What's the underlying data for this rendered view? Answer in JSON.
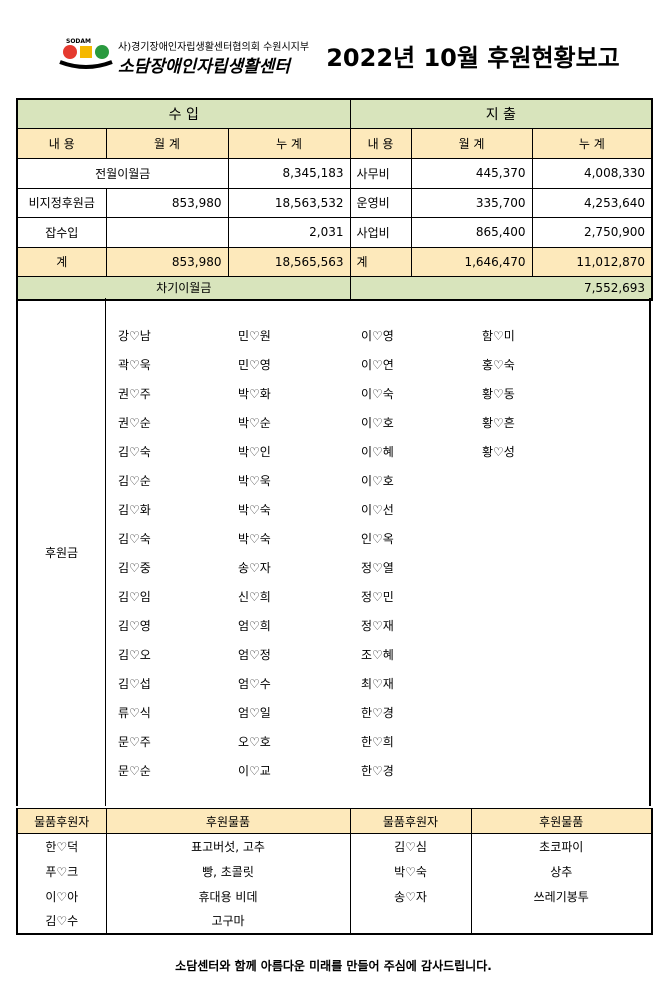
{
  "header": {
    "logo_mark": "SODAM",
    "org": "사)경기장애인자립생활센터협의회 수원시지부",
    "logo_text": "소담장애인자립생활센터",
    "title": "2022년 10월 후원현황보고"
  },
  "summary": {
    "income_label": "수 입",
    "expense_label": "지 출",
    "columns": [
      "내 용",
      "월 계",
      "누 계",
      "내 용",
      "월 계",
      "누 계"
    ],
    "rows": [
      {
        "income_item": "전월이월금",
        "income_total": "8,345,183",
        "expense_item": "사무비",
        "expense_month": "445,370",
        "expense_total": "4,008,330"
      },
      {
        "income_item": "비지정후원금",
        "income_month": "853,980",
        "income_total": "18,563,532",
        "expense_item": "운영비",
        "expense_month": "335,700",
        "expense_total": "4,253,640"
      },
      {
        "income_item": "잡수입",
        "income_total": "2,031",
        "expense_item": "사업비",
        "expense_month": "865,400",
        "expense_total": "2,750,900"
      },
      {
        "income_item": "계",
        "income_month": "853,980",
        "income_total": "18,565,563",
        "expense_item": "계",
        "expense_month": "1,646,470",
        "expense_total": "11,012,870"
      }
    ],
    "carryover": {
      "label": "차기이월금",
      "value": "7,552,693"
    }
  },
  "donors": {
    "label": "후원금",
    "columns": [
      [
        "강♡남",
        "곽♡욱",
        "권♡주",
        "권♡순",
        "김♡숙",
        "김♡순",
        "김♡화",
        "김♡숙",
        "김♡중",
        "김♡임",
        "김♡영",
        "김♡오",
        "김♡섭",
        "류♡식",
        "문♡주",
        "문♡순"
      ],
      [
        "민♡원",
        "민♡영",
        "박♡화",
        "박♡순",
        "박♡인",
        "박♡욱",
        "박♡숙",
        "박♡숙",
        "송♡자",
        "신♡희",
        "엄♡희",
        "엄♡정",
        "엄♡수",
        "엄♡일",
        "오♡호",
        "이♡교"
      ],
      [
        "이♡영",
        "이♡연",
        "이♡숙",
        "이♡호",
        "이♡혜",
        "이♡호",
        "이♡선",
        "인♡옥",
        "정♡열",
        "정♡민",
        "정♡재",
        "조♡혜",
        "최♡재",
        "한♡경",
        "한♡희",
        "한♡경"
      ],
      [
        "함♡미",
        "홍♡숙",
        "황♡동",
        "황♡흔",
        "황♡성"
      ]
    ]
  },
  "goods": {
    "columns": [
      "물품후원자",
      "후원물품",
      "물품후원자",
      "후원물품"
    ],
    "left": [
      {
        "donor": "한♡덕",
        "item": "표고버섯, 고추"
      },
      {
        "donor": "푸♡크",
        "item": "빵, 초콜릿"
      },
      {
        "donor": "이♡아",
        "item": "휴대용 비데"
      },
      {
        "donor": "김♡수",
        "item": "고구마"
      }
    ],
    "right": [
      {
        "donor": "김♡심",
        "item": "초코파이"
      },
      {
        "donor": "박♡숙",
        "item": "상추"
      },
      {
        "donor": "송♡자",
        "item": "쓰레기봉투"
      }
    ]
  },
  "footer": "소담센터와 함께 아름다운 미래를 만들어 주심에 감사드립니다."
}
